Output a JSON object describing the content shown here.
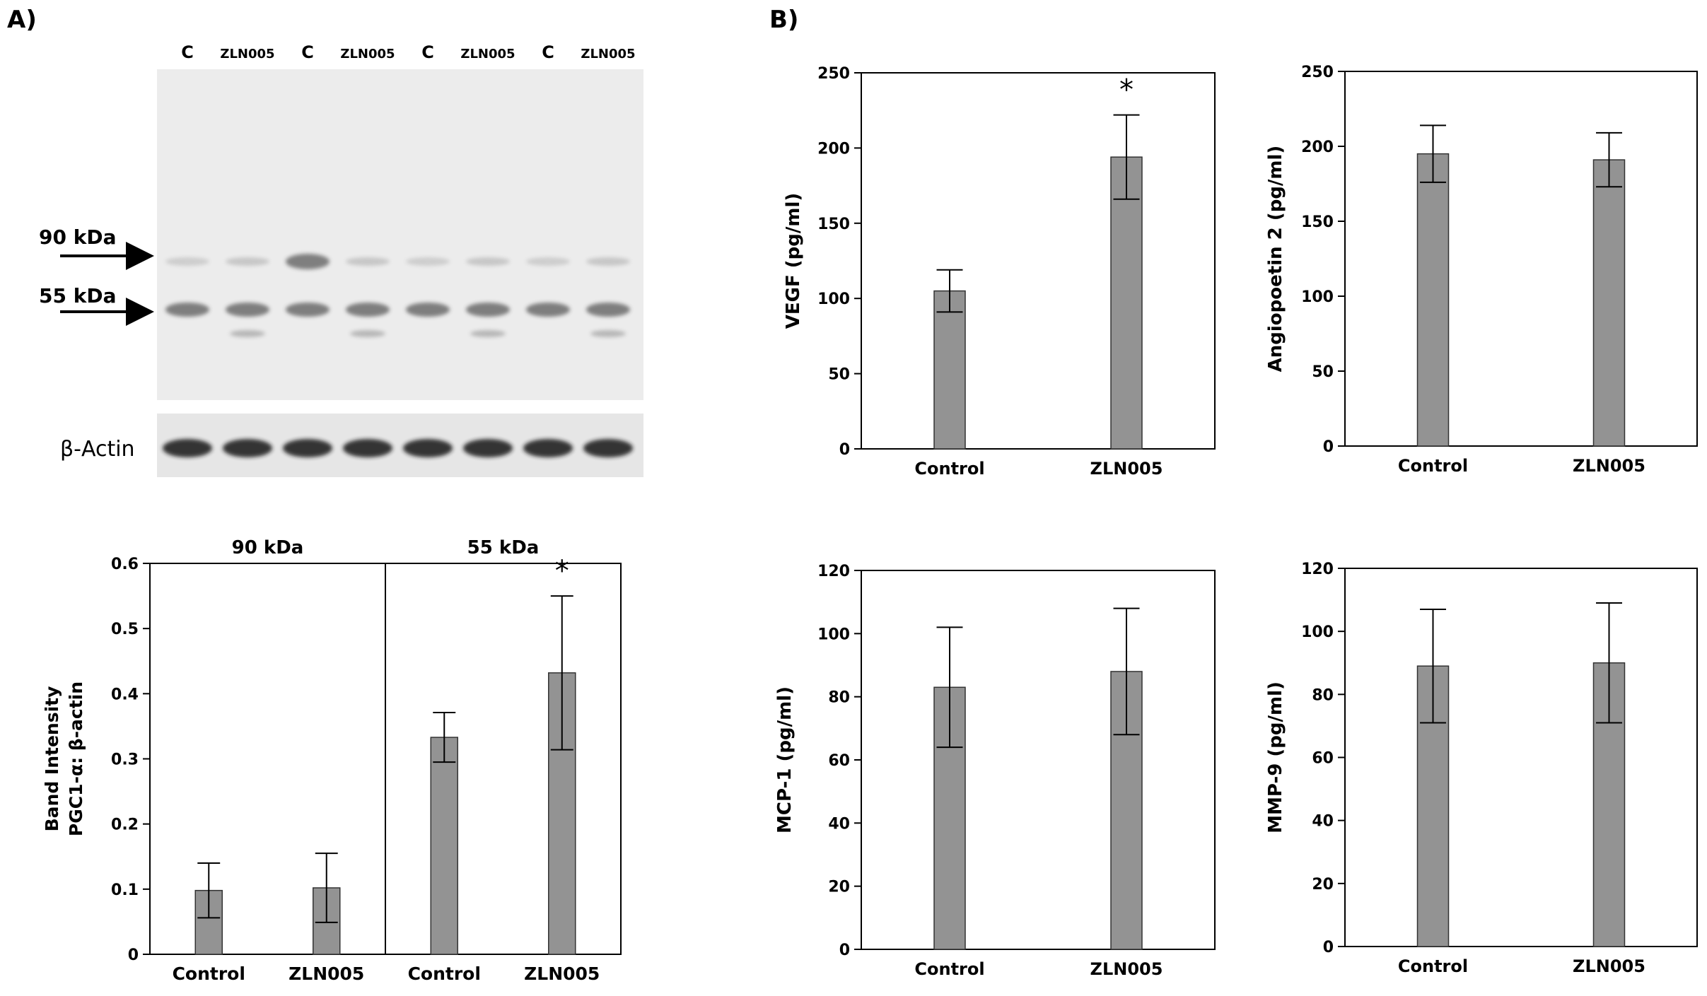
{
  "panels": {
    "a": "A)",
    "b": "B)"
  },
  "blot": {
    "lanes": [
      "C",
      "ZLN005",
      "C",
      "ZLN005",
      "C",
      "ZLN005",
      "C",
      "ZLN005"
    ],
    "marker_90": "90 kDa",
    "marker_55": "55 kDa",
    "actin_label": "β-Actin"
  },
  "colors": {
    "bar": "#939393",
    "text": "#000000"
  },
  "chart_data": [
    {
      "id": "pgc1a",
      "type": "bar",
      "ylabel": [
        "Band Intensity",
        "PGC1-α: β-actin"
      ],
      "ylim": [
        0,
        0.6
      ],
      "yticks": [
        "0",
        "0.1",
        "0.2",
        "0.3",
        "0.4",
        "0.5",
        "0.6"
      ],
      "groups": [
        {
          "title": "90 kDa",
          "categories": [
            "Control",
            "ZLN005"
          ],
          "values": [
            0.098,
            0.102
          ],
          "errors": [
            0.042,
            0.053
          ]
        },
        {
          "title": "55 kDa",
          "categories": [
            "Control",
            "ZLN005"
          ],
          "values": [
            0.333,
            0.432
          ],
          "errors": [
            0.038,
            0.118
          ]
        }
      ],
      "significance": "*"
    },
    {
      "id": "vegf",
      "type": "bar",
      "ylabel": "VEGF (pg/ml)",
      "ylim": [
        0,
        250
      ],
      "yticks": [
        "0",
        "50",
        "100",
        "150",
        "200",
        "250"
      ],
      "categories": [
        "Control",
        "ZLN005"
      ],
      "values": [
        105,
        194
      ],
      "errors": [
        14,
        28
      ],
      "significance": "*"
    },
    {
      "id": "ang2",
      "type": "bar",
      "ylabel": "Angiopoetin 2 (pg/ml)",
      "ylim": [
        0,
        250
      ],
      "yticks": [
        "0",
        "50",
        "100",
        "150",
        "200",
        "250"
      ],
      "categories": [
        "Control",
        "ZLN005"
      ],
      "values": [
        195,
        191
      ],
      "errors": [
        19,
        18
      ]
    },
    {
      "id": "mcp1",
      "type": "bar",
      "ylabel": "MCP-1 (pg/ml)",
      "ylim": [
        0,
        120
      ],
      "yticks": [
        "0",
        "20",
        "40",
        "60",
        "80",
        "100",
        "120"
      ],
      "categories": [
        "Control",
        "ZLN005"
      ],
      "values": [
        83,
        88
      ],
      "errors": [
        19,
        20
      ]
    },
    {
      "id": "mmp9",
      "type": "bar",
      "ylabel": "MMP-9 (pg/ml)",
      "ylim": [
        0,
        120
      ],
      "yticks": [
        "0",
        "20",
        "40",
        "60",
        "80",
        "100",
        "120"
      ],
      "categories": [
        "Control",
        "ZLN005"
      ],
      "values": [
        89,
        90
      ],
      "errors": [
        18,
        19
      ]
    }
  ]
}
